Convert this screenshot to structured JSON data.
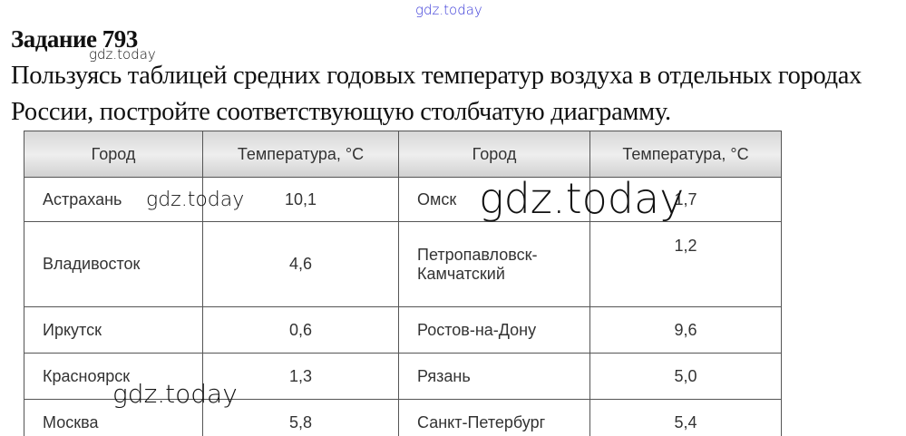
{
  "watermark": "gdz.today",
  "title": "Задание 793",
  "task": "Пользуясь таблицей средних годовых температур воздуха в отдельных городах России, постройте соответствующую столбчатую диаграмму.",
  "table": {
    "headers": [
      "Город",
      "Температура, °С",
      "Город",
      "Температура, °С"
    ],
    "rows": [
      [
        "Астрахань",
        "10,1",
        "Омск",
        "1,7"
      ],
      [
        "Владивосток",
        "4,6",
        "Петропавловск-Камчатский",
        "1,2"
      ],
      [
        "Иркутск",
        "0,6",
        "Ростов-на-Дону",
        "9,6"
      ],
      [
        "Красноярск",
        "1,3",
        "Рязань",
        "5,0"
      ],
      [
        "Москва",
        "5,8",
        "Санкт-Петербург",
        "5,4"
      ]
    ]
  }
}
